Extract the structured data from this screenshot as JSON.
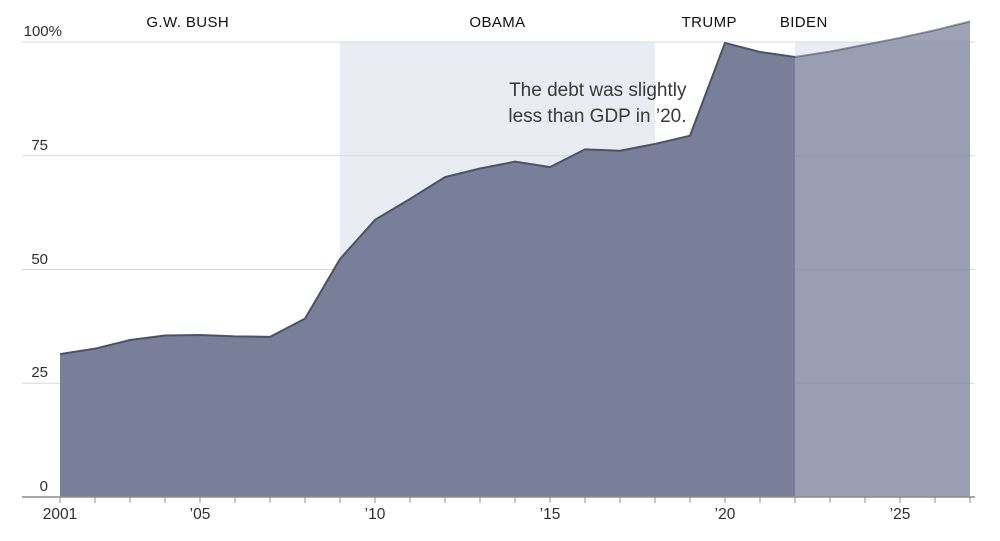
{
  "chart_data": {
    "type": "area",
    "unit": "%",
    "x": [
      2001,
      2002,
      2003,
      2004,
      2005,
      2006,
      2007,
      2008,
      2009,
      2010,
      2011,
      2012,
      2013,
      2014,
      2015,
      2016,
      2017,
      2018,
      2019,
      2020,
      2021,
      2022,
      2023,
      2024,
      2025,
      2026,
      2027
    ],
    "values": [
      31.4,
      32.6,
      34.5,
      35.5,
      35.6,
      35.3,
      35.2,
      39.2,
      52.3,
      60.9,
      65.5,
      70.3,
      72.2,
      73.7,
      72.5,
      76.4,
      76.1,
      77.6,
      79.4,
      99.8,
      97.8,
      96.7,
      97.9,
      99.4,
      100.9,
      102.6,
      104.5
    ],
    "projection_start_year": 2022,
    "xlim": [
      2001,
      2027
    ],
    "ylim_gridlines": [
      0,
      100
    ],
    "y_gridline_values": [
      25,
      50,
      75,
      100
    ],
    "x_minor_tick_step": 1,
    "x_ticks": [
      {
        "value": 2001,
        "label": "2001"
      },
      {
        "value": 2005,
        "label": "’05"
      },
      {
        "value": 2010,
        "label": "’10"
      },
      {
        "value": 2015,
        "label": "’15"
      },
      {
        "value": 2020,
        "label": "’20"
      },
      {
        "value": 2025,
        "label": "’25"
      }
    ],
    "y_ticks": [
      {
        "value": 0,
        "label": "0"
      },
      {
        "value": 25,
        "label": "25"
      },
      {
        "value": 50,
        "label": "50"
      },
      {
        "value": 75,
        "label": "75"
      },
      {
        "value": 100,
        "label": "100%"
      }
    ],
    "president_labels": [
      {
        "name": "G.W. BUSH",
        "center_year": 2004.65
      },
      {
        "name": "OBAMA",
        "center_year": 2013.5
      },
      {
        "name": "TRUMP",
        "center_year": 2019.55
      },
      {
        "name": "BIDEN",
        "center_year": 2022.25
      }
    ],
    "term_band": {
      "label": "OBAMA",
      "start_year": 2009,
      "end_year": 2018
    },
    "projection_band": {
      "start_year": 2022,
      "end_year": 2027
    },
    "annotation": {
      "line1": "The debt was slightly",
      "line2": "less than GDP in ’20.",
      "anchor_year": 2018.9,
      "anchor_value": 92.1
    },
    "colors": {
      "area_fill": "#7a7f99",
      "line": "#4d5168",
      "projection_fill_opacity": 0.72,
      "projection_line_opacity": 0.6,
      "band_bg": "#e9ecf2",
      "gridline": "#d9d9d9",
      "axis": "#8c8c8c",
      "label_text": "#2e2e2e",
      "annotation_text": "#3a3a3a"
    }
  }
}
